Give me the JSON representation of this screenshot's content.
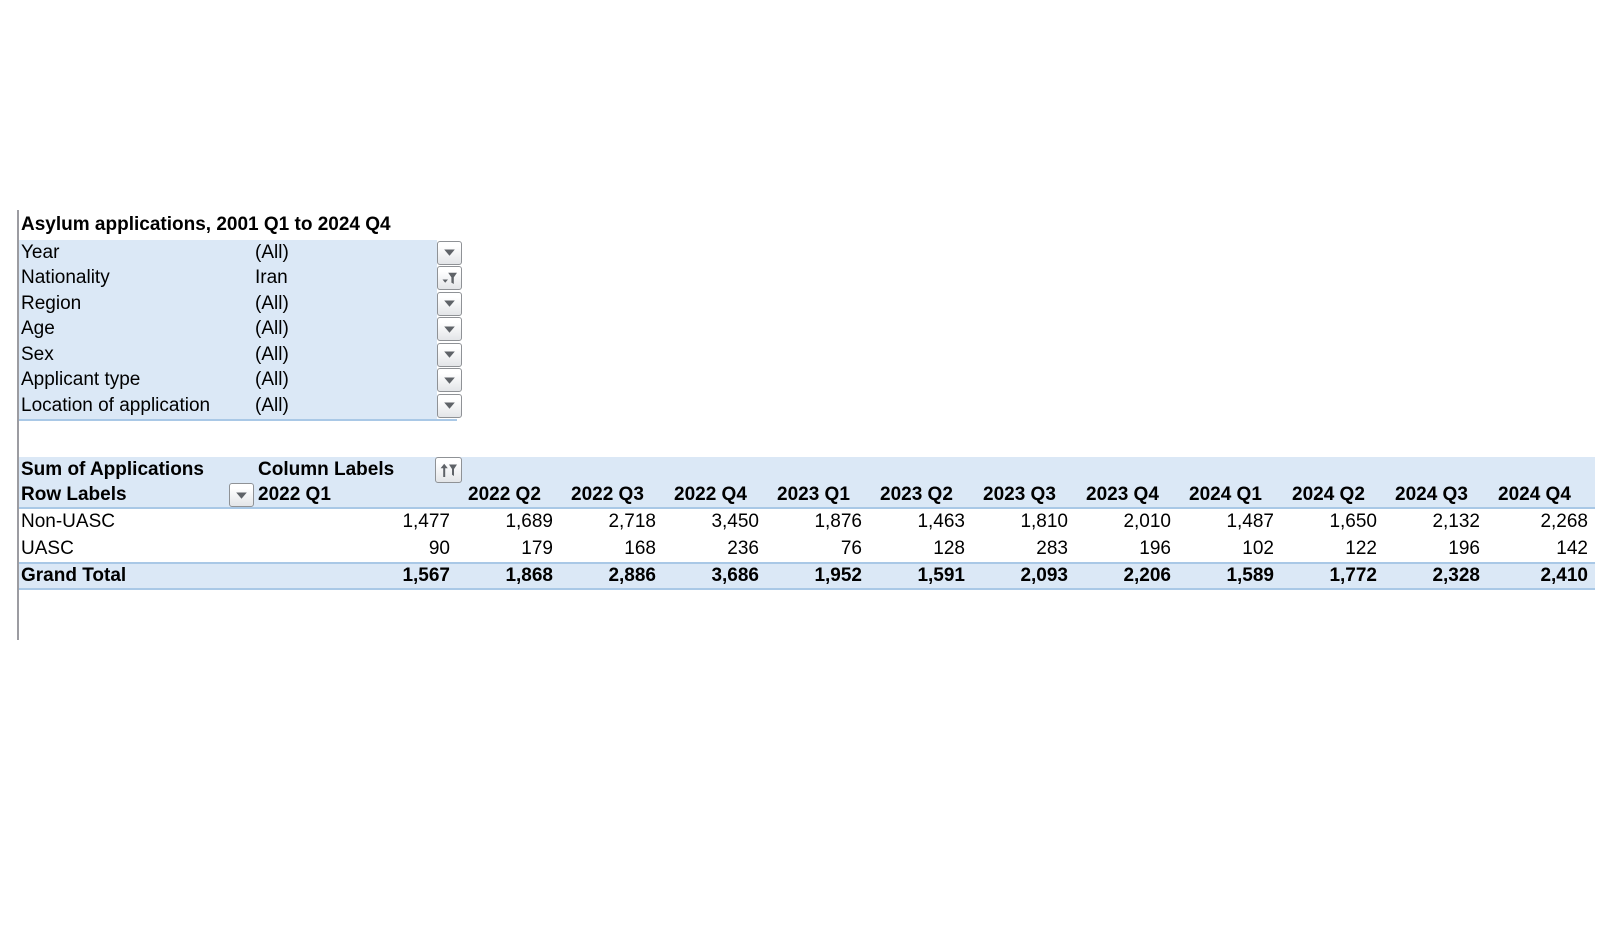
{
  "title": "Asylum applications, 2001 Q1 to 2024 Q4",
  "filters": [
    {
      "label": "Year",
      "value": "(All)",
      "state": "all"
    },
    {
      "label": "Nationality",
      "value": "Iran",
      "state": "filtered"
    },
    {
      "label": "Region",
      "value": "(All)",
      "state": "all"
    },
    {
      "label": "Age",
      "value": "(All)",
      "state": "all"
    },
    {
      "label": "Sex",
      "value": "(All)",
      "state": "all"
    },
    {
      "label": "Applicant type",
      "value": "(All)",
      "state": "all"
    },
    {
      "label": "Location of application",
      "value": "(All)",
      "state": "all"
    }
  ],
  "pivot": {
    "measure_label": "Sum of Applications",
    "column_labels_label": "Column Labels",
    "row_labels_label": "Row Labels",
    "columns": [
      "2022 Q1",
      "2022 Q2",
      "2022 Q3",
      "2022 Q4",
      "2023 Q1",
      "2023 Q2",
      "2023 Q3",
      "2023 Q4",
      "2024 Q1",
      "2024 Q2",
      "2024 Q3",
      "2024 Q4"
    ],
    "rows": [
      {
        "label": "Non-UASC",
        "values": [
          "1,477",
          "1,689",
          "2,718",
          "3,450",
          "1,876",
          "1,463",
          "1,810",
          "2,010",
          "1,487",
          "1,650",
          "2,132",
          "2,268"
        ]
      },
      {
        "label": "UASC",
        "values": [
          "90",
          "179",
          "168",
          "236",
          "76",
          "128",
          "283",
          "196",
          "102",
          "122",
          "196",
          "142"
        ]
      }
    ],
    "grand_total": {
      "label": "Grand Total",
      "values": [
        "1,567",
        "1,868",
        "2,886",
        "3,686",
        "1,952",
        "1,591",
        "2,093",
        "2,206",
        "1,589",
        "1,772",
        "2,328",
        "2,410"
      ]
    }
  },
  "icons": {
    "dropdown": "dropdown-arrow-icon",
    "filtered_dropdown": "filter-funnel-icon",
    "column_sort_filter": "sort-filter-icon"
  },
  "colors": {
    "band_blue": "#dbe8f6",
    "border_blue": "#a9c8e6",
    "gridline_gray": "#9c9ca1"
  }
}
